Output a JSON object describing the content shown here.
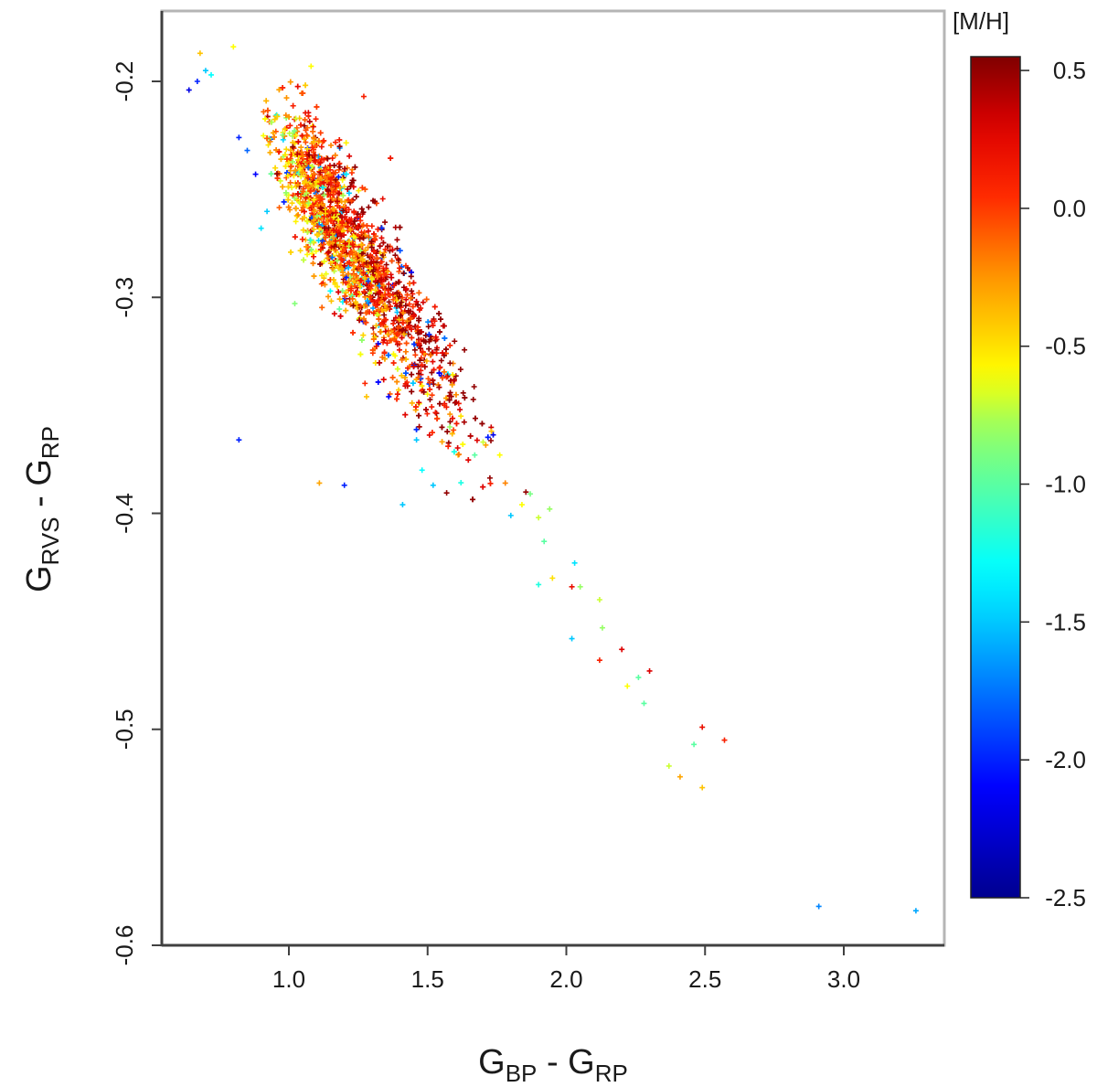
{
  "chart_data": {
    "type": "scatter",
    "title": "",
    "xlabel": {
      "main": "G",
      "sub1": "BP",
      "mid": " - G",
      "sub2": "RP"
    },
    "ylabel": {
      "main": "G",
      "sub1": "RVS",
      "mid": " - G",
      "sub2": "RP"
    },
    "xlim": [
      0.55,
      3.35
    ],
    "ylim": [
      -0.6,
      -0.17
    ],
    "x_ticks": [
      1.0,
      1.5,
      2.0,
      2.5,
      3.0
    ],
    "x_tick_labels": [
      "1.0",
      "1.5",
      "2.0",
      "2.5",
      "3.0"
    ],
    "y_ticks": [
      -0.6,
      -0.5,
      -0.4,
      -0.3,
      -0.2
    ],
    "y_tick_labels": [
      "-0.6",
      "-0.5",
      "-0.4",
      "-0.3",
      "-0.2"
    ],
    "grid": false,
    "marker": "+",
    "colorbar": {
      "title": "[M/H]",
      "range": [
        -2.5,
        0.55
      ],
      "ticks": [
        0.5,
        0.0,
        -0.5,
        -1.0,
        -1.5,
        -2.0,
        -2.5
      ],
      "tick_labels": [
        "0.5",
        "0.0",
        "-0.5",
        "-1.0",
        "-1.5",
        "-2.0",
        "-2.5"
      ],
      "colormap": [
        "#00008f",
        "#0000ff",
        "#00ffff",
        "#ffff00",
        "#ff8000",
        "#ff0000",
        "#800000"
      ]
    },
    "main_cluster": {
      "description_center": [
        1.2,
        -0.26
      ],
      "n_points": 2600
    },
    "points": [
      {
        "x": 0.64,
        "y": -0.204,
        "m": -2.2
      },
      {
        "x": 0.67,
        "y": -0.2,
        "m": -2.0
      },
      {
        "x": 0.68,
        "y": -0.187,
        "m": -0.4
      },
      {
        "x": 0.7,
        "y": -0.195,
        "m": -1.5
      },
      {
        "x": 0.72,
        "y": -0.197,
        "m": -1.3
      },
      {
        "x": 0.8,
        "y": -0.184,
        "m": -0.6
      },
      {
        "x": 0.82,
        "y": -0.226,
        "m": -2.0
      },
      {
        "x": 0.85,
        "y": -0.232,
        "m": -1.8
      },
      {
        "x": 0.88,
        "y": -0.243,
        "m": -2.1
      },
      {
        "x": 0.9,
        "y": -0.268,
        "m": -1.4
      },
      {
        "x": 0.82,
        "y": -0.366,
        "m": -2.0
      },
      {
        "x": 1.08,
        "y": -0.193,
        "m": -0.6
      },
      {
        "x": 1.11,
        "y": -0.386,
        "m": -0.3
      },
      {
        "x": 1.2,
        "y": -0.387,
        "m": -2.0
      },
      {
        "x": 1.27,
        "y": -0.207,
        "m": 0.1
      },
      {
        "x": 1.28,
        "y": -0.346,
        "m": -0.4
      },
      {
        "x": 1.36,
        "y": -0.346,
        "m": -2.1
      },
      {
        "x": 1.41,
        "y": -0.396,
        "m": -1.5
      },
      {
        "x": 1.46,
        "y": -0.366,
        "m": -1.5
      },
      {
        "x": 1.48,
        "y": -0.38,
        "m": -1.3
      },
      {
        "x": 1.52,
        "y": -0.387,
        "m": -1.5
      },
      {
        "x": 1.58,
        "y": -0.36,
        "m": -0.8
      },
      {
        "x": 1.62,
        "y": -0.355,
        "m": -0.5
      },
      {
        "x": 1.67,
        "y": -0.373,
        "m": -1.0
      },
      {
        "x": 1.7,
        "y": -0.367,
        "m": -0.7
      },
      {
        "x": 1.73,
        "y": -0.362,
        "m": -0.4
      },
      {
        "x": 1.76,
        "y": -0.373,
        "m": -0.6
      },
      {
        "x": 1.78,
        "y": -0.386,
        "m": -0.2
      },
      {
        "x": 1.8,
        "y": -0.401,
        "m": -1.5
      },
      {
        "x": 1.84,
        "y": -0.396,
        "m": -0.6
      },
      {
        "x": 1.87,
        "y": -0.391,
        "m": -0.9
      },
      {
        "x": 1.9,
        "y": -0.402,
        "m": -0.7
      },
      {
        "x": 1.92,
        "y": -0.413,
        "m": -1.0
      },
      {
        "x": 1.94,
        "y": -0.398,
        "m": -0.8
      },
      {
        "x": 1.9,
        "y": -0.433,
        "m": -1.2
      },
      {
        "x": 1.95,
        "y": -0.43,
        "m": -0.5
      },
      {
        "x": 2.02,
        "y": -0.434,
        "m": 0.2
      },
      {
        "x": 2.03,
        "y": -0.423,
        "m": -1.4
      },
      {
        "x": 2.05,
        "y": -0.434,
        "m": -0.8
      },
      {
        "x": 2.02,
        "y": -0.458,
        "m": -1.5
      },
      {
        "x": 2.12,
        "y": -0.44,
        "m": -0.7
      },
      {
        "x": 2.13,
        "y": -0.453,
        "m": -0.8
      },
      {
        "x": 2.12,
        "y": -0.468,
        "m": 0.1
      },
      {
        "x": 2.2,
        "y": -0.463,
        "m": 0.3
      },
      {
        "x": 2.22,
        "y": -0.48,
        "m": -0.6
      },
      {
        "x": 2.26,
        "y": -0.476,
        "m": -1.0
      },
      {
        "x": 2.3,
        "y": -0.473,
        "m": 0.3
      },
      {
        "x": 2.28,
        "y": -0.488,
        "m": -1.0
      },
      {
        "x": 2.37,
        "y": -0.517,
        "m": -0.7
      },
      {
        "x": 2.41,
        "y": -0.522,
        "m": -0.3
      },
      {
        "x": 2.46,
        "y": -0.507,
        "m": -1.0
      },
      {
        "x": 2.49,
        "y": -0.499,
        "m": 0.2
      },
      {
        "x": 2.49,
        "y": -0.527,
        "m": -0.4
      },
      {
        "x": 2.57,
        "y": -0.505,
        "m": 0.1
      },
      {
        "x": 2.91,
        "y": -0.582,
        "m": -1.7
      },
      {
        "x": 3.26,
        "y": -0.584,
        "m": -1.6
      }
    ]
  }
}
